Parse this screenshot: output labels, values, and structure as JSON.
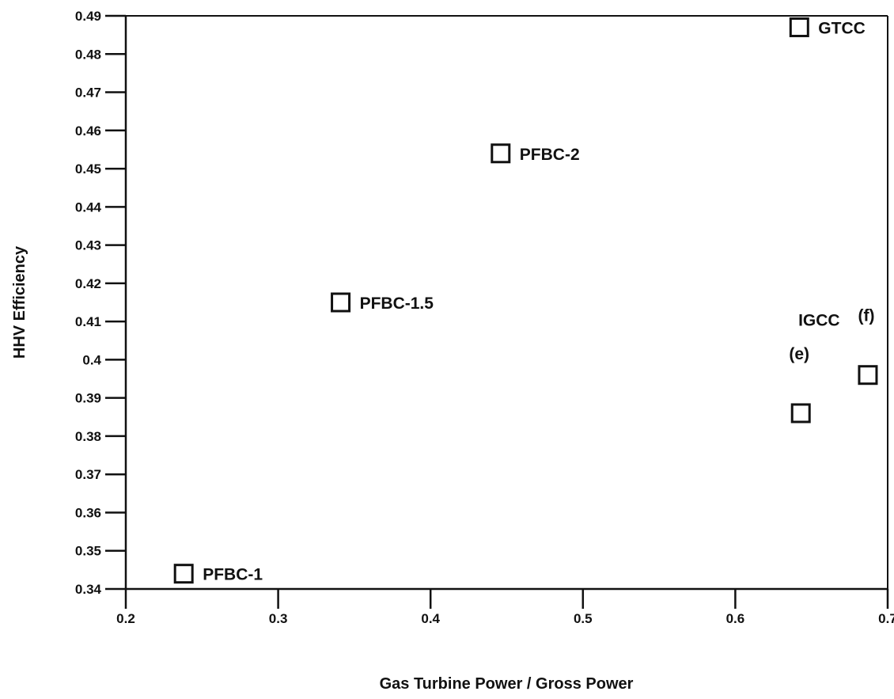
{
  "chart_data": {
    "type": "scatter",
    "title": "",
    "xlabel": "Gas Turbine Power / Gross Power",
    "ylabel": "HHV Efficiency",
    "xlim": [
      0.2,
      0.7
    ],
    "ylim": [
      0.34,
      0.49
    ],
    "x_ticks": [
      "0.2",
      "0.3",
      "0.4",
      "0.5",
      "0.6",
      "0.7"
    ],
    "y_ticks": [
      "0.34",
      "0.35",
      "0.36",
      "0.37",
      "0.38",
      "0.39",
      "0.4",
      "0.41",
      "0.42",
      "0.43",
      "0.44",
      "0.45",
      "0.46",
      "0.47",
      "0.48",
      "0.49"
    ],
    "grid": false,
    "marker": "open-square",
    "points": [
      {
        "label": "PFBC-1",
        "x": 0.238,
        "y": 0.344
      },
      {
        "label": "PFBC-1.5",
        "x": 0.341,
        "y": 0.415
      },
      {
        "label": "PFBC-2",
        "x": 0.446,
        "y": 0.454
      },
      {
        "label": "GTCC",
        "x": 0.642,
        "y": 0.487
      },
      {
        "label": "(e)",
        "x": 0.643,
        "y": 0.386
      },
      {
        "label": "(f)",
        "x": 0.687,
        "y": 0.396
      }
    ],
    "annotations": [
      {
        "text": "IGCC",
        "x": 0.655,
        "y": 0.4105
      }
    ]
  }
}
